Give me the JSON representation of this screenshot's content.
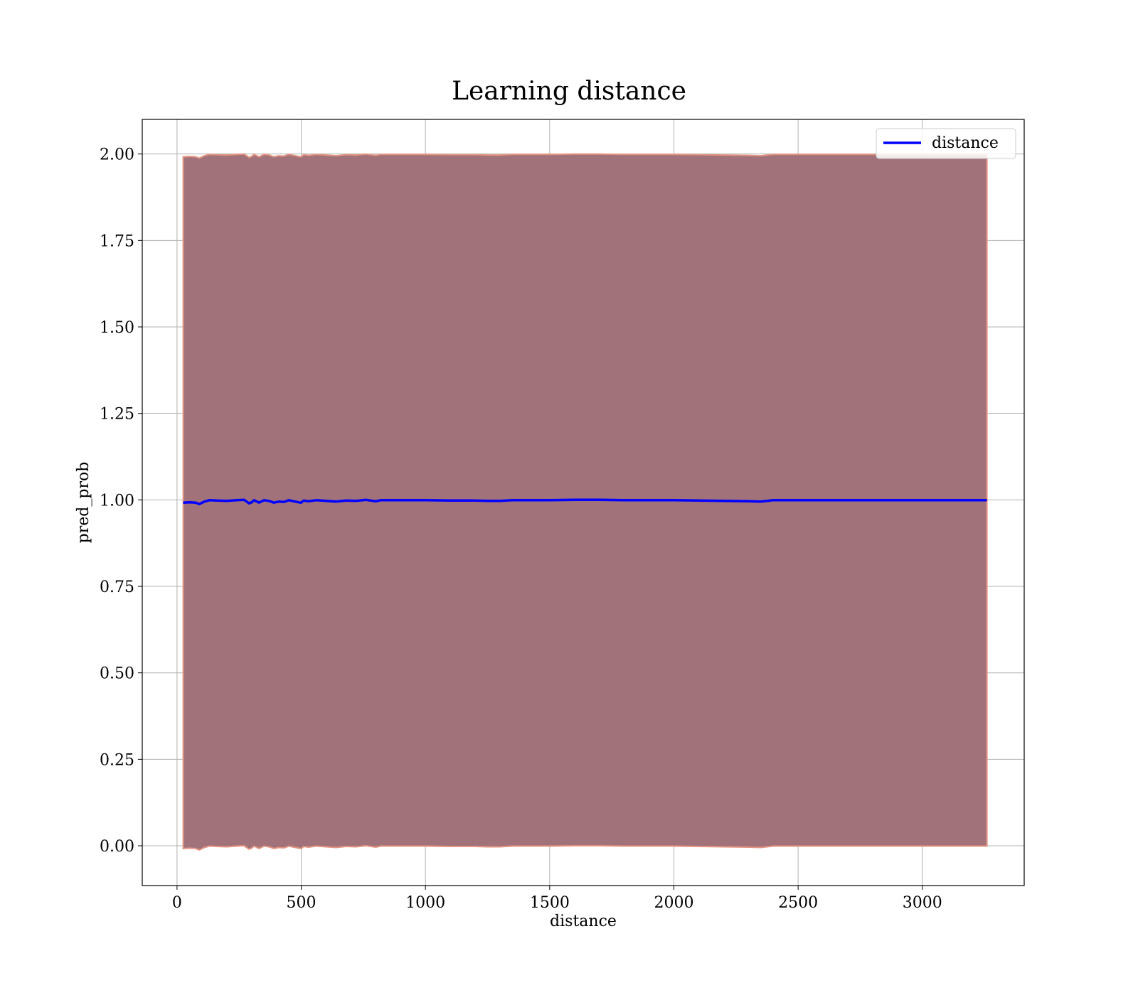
{
  "chart_data": {
    "type": "line",
    "title": "Learning distance",
    "xlabel": "distance",
    "ylabel": "pred_prob",
    "xlim": [
      -140,
      3410
    ],
    "ylim": [
      -0.115,
      2.1
    ],
    "xticks": [
      0,
      500,
      1000,
      1500,
      2000,
      2500,
      3000
    ],
    "yticks": [
      0.0,
      0.25,
      0.5,
      0.75,
      1.0,
      1.25,
      1.5,
      1.75,
      2.0
    ],
    "ytick_labels": [
      "0.00",
      "0.25",
      "0.50",
      "0.75",
      "1.00",
      "1.25",
      "1.50",
      "1.75",
      "2.00"
    ],
    "grid": true,
    "legend_placement": "top-right",
    "colors": {
      "line": "#0000ff",
      "band_fill": "#a2727b",
      "band_edge": "#e49480",
      "grid": "#b0b0b0",
      "axes": "#000000"
    },
    "series": [
      {
        "name": "distance",
        "x": [
          25,
          50,
          75,
          90,
          110,
          130,
          160,
          200,
          240,
          270,
          290,
          300,
          310,
          330,
          350,
          370,
          390,
          410,
          430,
          450,
          470,
          490,
          500,
          510,
          530,
          560,
          600,
          640,
          680,
          720,
          760,
          800,
          820,
          850,
          900,
          1000,
          1100,
          1200,
          1250,
          1300,
          1350,
          1400,
          1500,
          1600,
          1700,
          1800,
          1900,
          2000,
          2100,
          2200,
          2300,
          2350,
          2400,
          2500,
          2600,
          2700,
          2800,
          2900,
          3000,
          3100,
          3200,
          3260
        ],
        "y": [
          0.992,
          0.993,
          0.992,
          0.988,
          0.995,
          0.999,
          0.998,
          0.997,
          0.999,
          1.0,
          0.99,
          0.993,
          0.999,
          0.992,
          0.999,
          0.997,
          0.992,
          0.995,
          0.994,
          0.999,
          0.996,
          0.993,
          0.992,
          0.998,
          0.996,
          0.999,
          0.997,
          0.995,
          0.998,
          0.997,
          1.0,
          0.996,
          0.999,
          0.999,
          0.999,
          0.999,
          0.998,
          0.998,
          0.997,
          0.997,
          0.999,
          0.999,
          0.999,
          1.0,
          1.0,
          0.999,
          0.999,
          0.999,
          0.998,
          0.997,
          0.996,
          0.995,
          0.999,
          0.999,
          0.999,
          0.999,
          0.999,
          0.999,
          0.999,
          0.999,
          0.999,
          0.999
        ]
      }
    ]
  }
}
